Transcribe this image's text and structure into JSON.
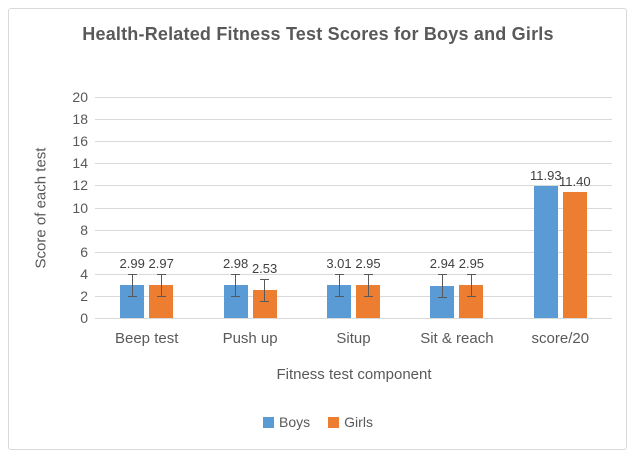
{
  "chart_data": {
    "type": "bar",
    "title": "Health-Related Fitness Test Scores for Boys and Girls",
    "xlabel": "Fitness test component",
    "ylabel": "Score of each test",
    "categories": [
      "Beep test",
      "Push up",
      "Situp",
      "Sit & reach",
      "score/20"
    ],
    "series": [
      {
        "name": "Boys",
        "color": "#5b9bd5",
        "values": [
          2.99,
          2.98,
          3.01,
          2.94,
          11.93
        ],
        "errors": [
          1,
          1,
          1,
          1,
          null
        ]
      },
      {
        "name": "Girls",
        "color": "#ed7d31",
        "values": [
          2.97,
          2.53,
          2.95,
          2.95,
          11.4
        ],
        "errors": [
          1,
          1,
          1,
          1,
          null
        ]
      }
    ],
    "data_labels": true,
    "label_format": "2dp",
    "ylim": [
      0,
      20
    ],
    "ytick_step": 2,
    "grid": true,
    "legend_position": "bottom",
    "colors": {
      "gridline": "#d9d9d9",
      "axis_text": "#595959",
      "title_text": "#595959",
      "data_label_text": "#404040",
      "error_bar": "#595959",
      "frame_border": "#d9d9d9",
      "background": "#ffffff"
    }
  }
}
